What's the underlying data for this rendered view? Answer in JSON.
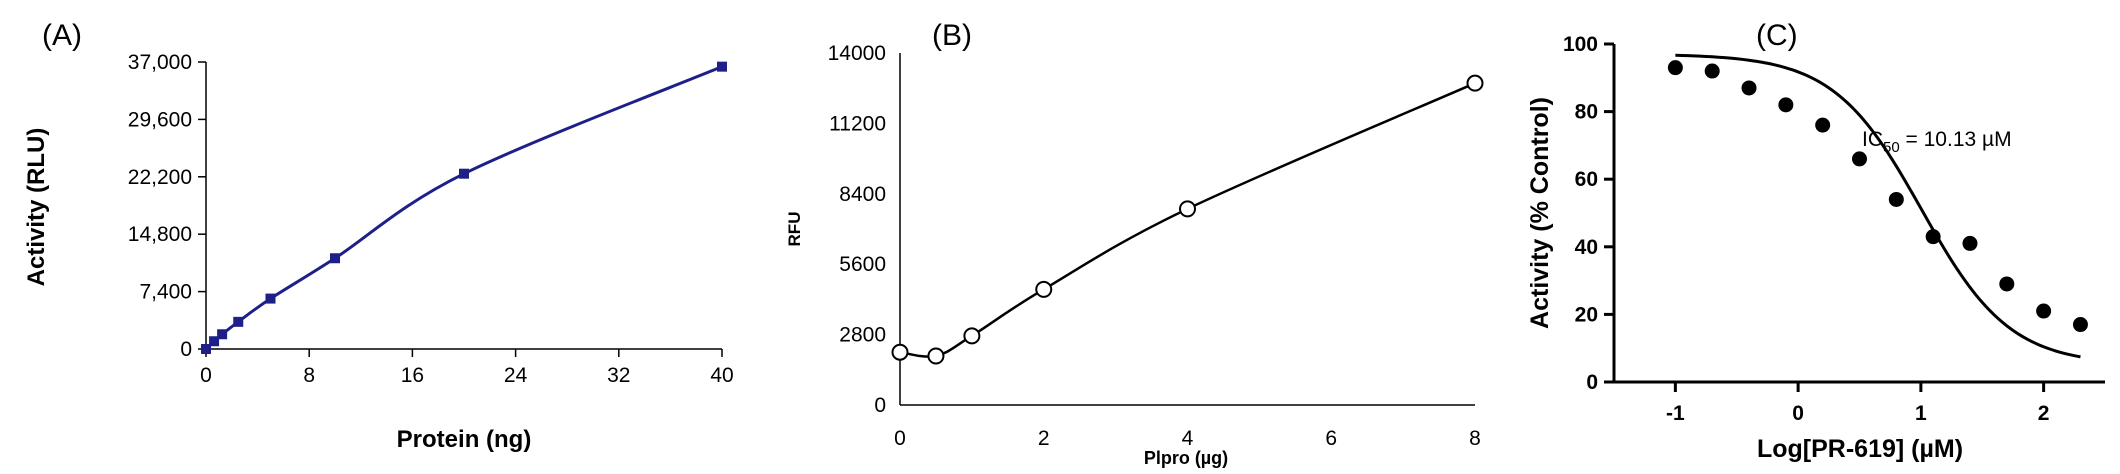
{
  "chart_data": [
    {
      "panel_label": "(A)",
      "type": "line",
      "xlabel": "Protein (ng)",
      "ylabel": "Activity (RLU)",
      "xlim": [
        0,
        40
      ],
      "ylim": [
        0,
        37000
      ],
      "xticks": [
        0,
        8,
        16,
        24,
        32,
        40
      ],
      "yticks": [
        0,
        7400,
        14800,
        22200,
        29600,
        37000
      ],
      "ytick_labels": [
        "0",
        "7,400",
        "14,800",
        "22,200",
        "29,600",
        "37,000"
      ],
      "marker": "square",
      "color": "#1f1f8a",
      "x": [
        0,
        0.625,
        1.25,
        2.5,
        5,
        10,
        20,
        40
      ],
      "y": [
        0,
        1000,
        1900,
        3500,
        6500,
        11700,
        22600,
        36400
      ]
    },
    {
      "panel_label": "(B)",
      "type": "line",
      "xlabel": "Plpro (µg)",
      "ylabel": "RFU",
      "xlim": [
        0,
        8
      ],
      "ylim": [
        0,
        14000
      ],
      "xticks": [
        0,
        2,
        4,
        6,
        8
      ],
      "yticks": [
        0,
        2800,
        5600,
        8400,
        11200,
        14000
      ],
      "ytick_labels": [
        "0",
        "2800",
        "5600",
        "8400",
        "11200",
        "14000"
      ],
      "marker": "open-circle",
      "color": "#000000",
      "x": [
        0,
        0.5,
        1,
        2,
        4,
        8
      ],
      "y": [
        2100,
        1950,
        2750,
        4600,
        7800,
        12800
      ]
    },
    {
      "panel_label": "(C)",
      "type": "scatter",
      "xlabel": "Log[PR-619] (µM)",
      "ylabel": "Activity (% Control)",
      "xlim": [
        -1.5,
        2.5
      ],
      "ylim": [
        0,
        100
      ],
      "xticks": [
        -1,
        0,
        1,
        2
      ],
      "yticks": [
        0,
        20,
        40,
        60,
        80,
        100
      ],
      "ytick_labels": [
        "0",
        "20",
        "40",
        "60",
        "80",
        "100"
      ],
      "marker": "filled-circle",
      "color": "#000000",
      "annotation": "IC50 = 10.13 µM",
      "annotation_prefix": "IC",
      "annotation_sub": "50",
      "annotation_suffix": " = 10.13 µM",
      "x": [
        -1,
        -0.7,
        -0.4,
        -0.1,
        0.2,
        0.5,
        0.8,
        1.1,
        1.4,
        1.7,
        2.0,
        2.3
      ],
      "y": [
        93,
        92,
        87,
        82,
        76,
        66,
        54,
        43,
        41,
        29,
        21,
        17
      ],
      "fit": {
        "top": 97,
        "bottom": 5,
        "logIC50": 1.006,
        "hill": 0.55
      }
    }
  ]
}
